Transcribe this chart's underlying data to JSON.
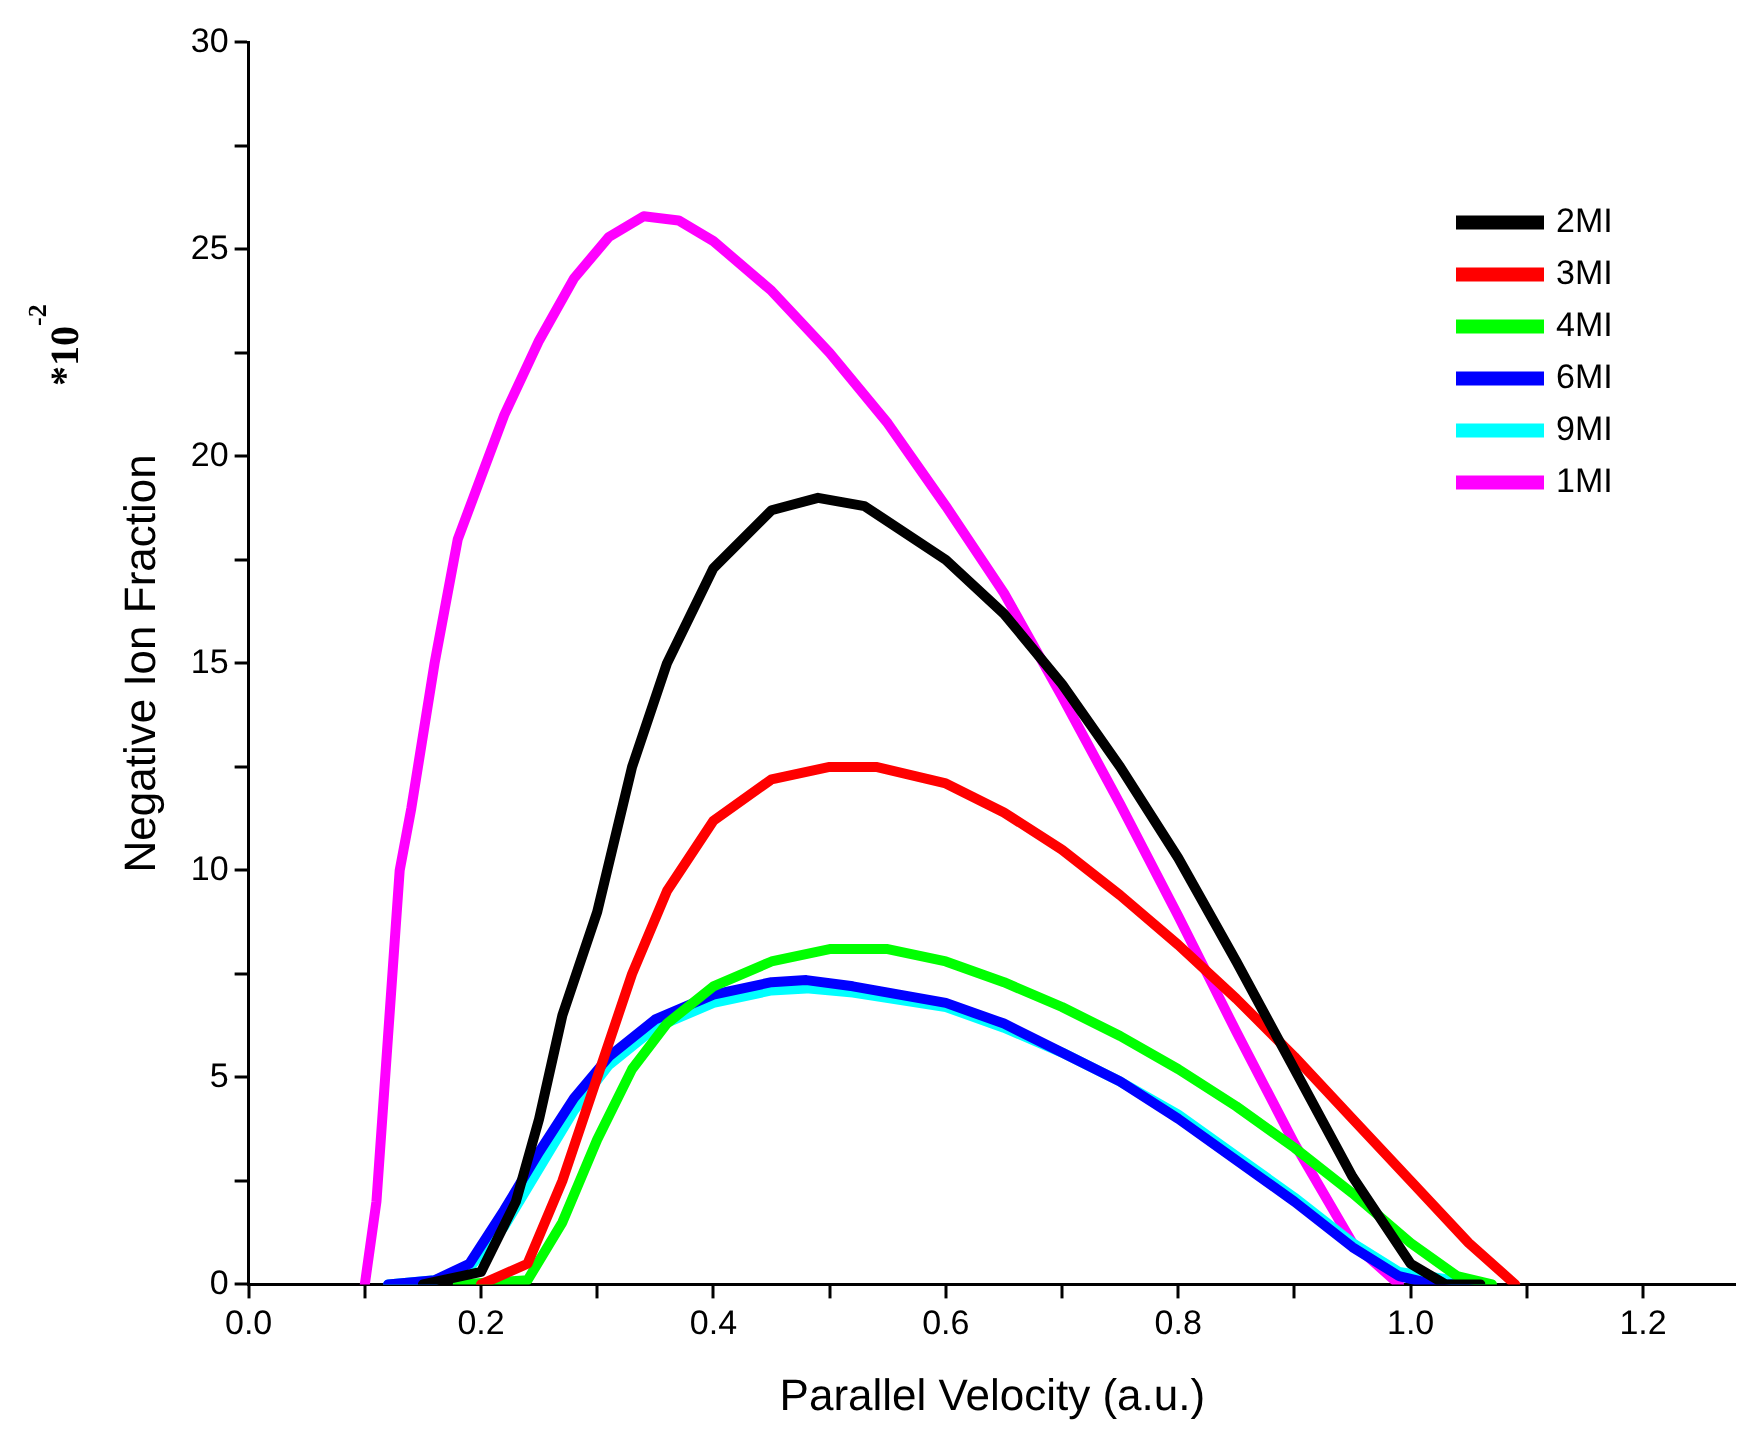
{
  "chart_data": {
    "type": "line",
    "xlabel": "Parallel Velocity (a.u.)",
    "ylabel": "Negative Ion Fraction",
    "annotations": [
      "*10$^{-2}$"
    ],
    "xlim": [
      0,
      1.28
    ],
    "xticks": [
      {
        "value": 0,
        "label": "0.0"
      },
      {
        "value": 0.1,
        "label": null
      },
      {
        "value": 0.2,
        "label": "0.2"
      },
      {
        "value": 0.3,
        "label": null
      },
      {
        "value": 0.4,
        "label": "0.4"
      },
      {
        "value": 0.5,
        "label": null
      },
      {
        "value": 0.6,
        "label": "0.6"
      },
      {
        "value": 0.7,
        "label": null
      },
      {
        "value": 0.8,
        "label": "0.8"
      },
      {
        "value": 0.9,
        "label": null
      },
      {
        "value": 1,
        "label": "1.0"
      },
      {
        "value": 1.1,
        "label": null
      },
      {
        "value": 1.2,
        "label": "1.2"
      }
    ],
    "ylim": [
      0,
      30
    ],
    "yticks": [
      0,
      {
        "value": 2.5,
        "label": null
      },
      5,
      {
        "value": 7.5,
        "label": null
      },
      10,
      {
        "value": 12.5,
        "label": null
      },
      15,
      {
        "value": 17.5,
        "label": null
      },
      20,
      {
        "value": 22.5,
        "label": null
      },
      25,
      {
        "value": 27.5,
        "label": null
      },
      30
    ],
    "grid": false,
    "legend": "top right",
    "marker": "none",
    "line_style": "solid",
    "series": [
      {
        "name": "2MI",
        "color": "#000000",
        "x": [
          0.15,
          0.2,
          0.23,
          0.25,
          0.27,
          0.3,
          0.33,
          0.36,
          0.4,
          0.45,
          0.49,
          0.53,
          0.6,
          0.65,
          0.7,
          0.75,
          0.8,
          0.85,
          0.9,
          0.95,
          1.0,
          1.03,
          1.06
        ],
        "values": [
          0,
          0.3,
          2,
          4,
          6.5,
          9,
          12.5,
          15,
          17.3,
          18.7,
          19.0,
          18.8,
          17.5,
          16.2,
          14.5,
          12.5,
          10.3,
          7.8,
          5.2,
          2.6,
          0.5,
          0,
          0
        ]
      },
      {
        "name": "3MI",
        "color": "#ff0000",
        "x": [
          0.2,
          0.24,
          0.27,
          0.3,
          0.33,
          0.36,
          0.4,
          0.45,
          0.5,
          0.54,
          0.6,
          0.65,
          0.7,
          0.75,
          0.8,
          0.85,
          0.9,
          0.95,
          1.0,
          1.05,
          1.09
        ],
        "values": [
          0,
          0.5,
          2.5,
          5,
          7.5,
          9.5,
          11.2,
          12.2,
          12.5,
          12.5,
          12.1,
          11.4,
          10.5,
          9.4,
          8.2,
          6.9,
          5.5,
          4.0,
          2.5,
          1.0,
          0
        ]
      },
      {
        "name": "4MI",
        "color": "#00ff00",
        "x": [
          0.18,
          0.24,
          0.27,
          0.3,
          0.33,
          0.36,
          0.4,
          0.45,
          0.5,
          0.55,
          0.6,
          0.65,
          0.7,
          0.75,
          0.8,
          0.85,
          0.9,
          0.95,
          1.0,
          1.04,
          1.07
        ],
        "values": [
          0,
          0.1,
          1.5,
          3.5,
          5.2,
          6.3,
          7.2,
          7.8,
          8.1,
          8.1,
          7.8,
          7.3,
          6.7,
          6.0,
          5.2,
          4.3,
          3.3,
          2.2,
          1.0,
          0.2,
          0
        ]
      },
      {
        "name": "6MI",
        "color": "#0000ff",
        "x": [
          0.12,
          0.16,
          0.19,
          0.22,
          0.25,
          0.28,
          0.31,
          0.35,
          0.4,
          0.45,
          0.48,
          0.52,
          0.6,
          0.65,
          0.7,
          0.75,
          0.8,
          0.85,
          0.9,
          0.95,
          0.99,
          1.02,
          1.05
        ],
        "values": [
          0,
          0.1,
          0.5,
          1.8,
          3.2,
          4.5,
          5.5,
          6.4,
          7.0,
          7.3,
          7.35,
          7.2,
          6.8,
          6.3,
          5.6,
          4.9,
          4.0,
          3.0,
          2.0,
          0.9,
          0.2,
          0,
          0
        ]
      },
      {
        "name": "9MI",
        "color": "#00ffff",
        "x": [
          0.12,
          0.16,
          0.19,
          0.22,
          0.25,
          0.28,
          0.31,
          0.35,
          0.4,
          0.45,
          0.48,
          0.52,
          0.6,
          0.65,
          0.7,
          0.75,
          0.8,
          0.85,
          0.9,
          0.95,
          0.99,
          1.06
        ],
        "values": [
          0,
          0.1,
          0.4,
          1.4,
          2.8,
          4.2,
          5.3,
          6.2,
          6.8,
          7.1,
          7.15,
          7.05,
          6.7,
          6.2,
          5.6,
          4.9,
          4.1,
          3.1,
          2.1,
          1.0,
          0.3,
          0
        ]
      },
      {
        "name": "1MI",
        "color": "#ff00ff",
        "x": [
          0.1,
          0.11,
          0.12,
          0.13,
          0.14,
          0.16,
          0.18,
          0.2,
          0.22,
          0.25,
          0.28,
          0.31,
          0.34,
          0.37,
          0.4,
          0.45,
          0.5,
          0.55,
          0.6,
          0.65,
          0.7,
          0.75,
          0.8,
          0.85,
          0.9,
          0.95,
          0.99
        ],
        "values": [
          0,
          2,
          6,
          10,
          11.5,
          15,
          18,
          19.5,
          21,
          22.8,
          24.3,
          25.3,
          25.8,
          25.7,
          25.2,
          24,
          22.5,
          20.8,
          18.8,
          16.7,
          14.2,
          11.6,
          8.9,
          6.1,
          3.4,
          1.0,
          0
        ]
      }
    ]
  }
}
